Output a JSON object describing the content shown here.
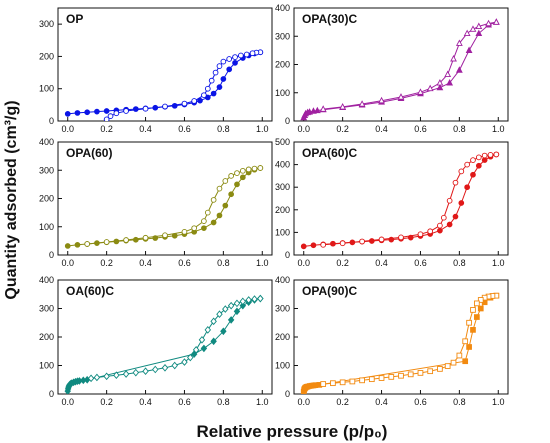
{
  "figure": {
    "ylabel": "Quantity adsorbed (cm³/g)",
    "xlabel": "Relative pressure (p/p₀)"
  },
  "chart_data": [
    {
      "type": "scatter",
      "title": "OP",
      "color": "#0a14e6",
      "marker": "circle",
      "xlim": [
        -0.05,
        1.05
      ],
      "ylim": [
        0,
        350
      ],
      "xticks": [
        "0.0",
        "0.2",
        "0.4",
        "0.6",
        "0.8",
        "1.0"
      ],
      "yticks": [
        "0",
        "100",
        "200",
        "300"
      ],
      "series": [
        {
          "fill": "filled",
          "x": [
            0.0,
            0.05,
            0.1,
            0.15,
            0.2,
            0.25,
            0.3,
            0.35,
            0.4,
            0.45,
            0.5,
            0.55,
            0.6,
            0.65,
            0.68,
            0.72,
            0.75,
            0.78,
            0.8,
            0.83,
            0.86,
            0.9,
            0.93,
            0.96,
            0.99
          ],
          "y": [
            22,
            25,
            27,
            29,
            31,
            33,
            35,
            37,
            39,
            41,
            44,
            47,
            51,
            57,
            63,
            73,
            85,
            105,
            130,
            160,
            180,
            195,
            203,
            209,
            213
          ]
        },
        {
          "fill": "open",
          "x": [
            0.99,
            0.97,
            0.95,
            0.92,
            0.89,
            0.86,
            0.83,
            0.8,
            0.78,
            0.76,
            0.74,
            0.72,
            0.7,
            0.65,
            0.6,
            0.5,
            0.4,
            0.3,
            0.25,
            0.22,
            0.2
          ],
          "y": [
            213,
            212,
            210,
            206,
            203,
            198,
            192,
            184,
            170,
            150,
            125,
            100,
            80,
            62,
            54,
            45,
            38,
            31,
            24,
            15,
            5
          ]
        }
      ]
    },
    {
      "type": "scatter",
      "title": "OPA(30)C",
      "color": "#a020a0",
      "marker": "triangle",
      "xlim": [
        -0.05,
        1.05
      ],
      "ylim": [
        0,
        400
      ],
      "xticks": [
        "0.0",
        "0.2",
        "0.4",
        "0.6",
        "0.8",
        "1.0"
      ],
      "yticks": [
        "0",
        "100",
        "200",
        "300",
        "400"
      ],
      "series": [
        {
          "fill": "filled",
          "x": [
            0.0,
            0.005,
            0.01,
            0.02,
            0.03,
            0.05,
            0.07,
            0.1,
            0.2,
            0.3,
            0.4,
            0.5,
            0.6,
            0.7,
            0.75,
            0.8,
            0.85,
            0.9,
            0.95,
            0.99
          ],
          "y": [
            12,
            20,
            26,
            30,
            32,
            35,
            37,
            40,
            48,
            57,
            67,
            80,
            97,
            118,
            135,
            180,
            250,
            310,
            340,
            350
          ]
        },
        {
          "fill": "open",
          "x": [
            0.99,
            0.95,
            0.9,
            0.87,
            0.84,
            0.8,
            0.77,
            0.74,
            0.7,
            0.65,
            0.6,
            0.5,
            0.4,
            0.3,
            0.2,
            0.1
          ],
          "y": [
            350,
            345,
            335,
            325,
            310,
            275,
            220,
            165,
            135,
            115,
            102,
            85,
            72,
            60,
            50,
            42
          ]
        }
      ]
    },
    {
      "type": "scatter",
      "title": "OPA(60)",
      "color": "#8b8b12",
      "marker": "circle",
      "xlim": [
        -0.05,
        1.05
      ],
      "ylim": [
        0,
        400
      ],
      "xticks": [
        "0.0",
        "0.2",
        "0.4",
        "0.6",
        "0.8",
        "1.0"
      ],
      "yticks": [
        "0",
        "100",
        "200",
        "300",
        "400"
      ],
      "series": [
        {
          "fill": "filled",
          "x": [
            0.0,
            0.05,
            0.1,
            0.15,
            0.2,
            0.25,
            0.3,
            0.35,
            0.4,
            0.45,
            0.5,
            0.55,
            0.6,
            0.65,
            0.7,
            0.75,
            0.78,
            0.81,
            0.84,
            0.87,
            0.9,
            0.93,
            0.96,
            0.99
          ],
          "y": [
            32,
            36,
            39,
            42,
            45,
            48,
            51,
            54,
            57,
            60,
            64,
            68,
            74,
            82,
            95,
            115,
            140,
            175,
            215,
            250,
            275,
            292,
            302,
            308
          ]
        },
        {
          "fill": "open",
          "x": [
            0.99,
            0.96,
            0.93,
            0.9,
            0.87,
            0.84,
            0.81,
            0.78,
            0.75,
            0.72,
            0.7,
            0.65,
            0.6,
            0.5,
            0.4,
            0.3,
            0.2,
            0.1
          ],
          "y": [
            308,
            306,
            303,
            298,
            290,
            280,
            262,
            235,
            195,
            150,
            120,
            95,
            82,
            70,
            61,
            53,
            46,
            39
          ]
        }
      ]
    },
    {
      "type": "scatter",
      "title": "OPA(60)C",
      "color": "#e01818",
      "marker": "circle",
      "xlim": [
        -0.05,
        1.05
      ],
      "ylim": [
        0,
        500
      ],
      "xticks": [
        "0.0",
        "0.2",
        "0.4",
        "0.6",
        "0.8",
        "1.0"
      ],
      "yticks": [
        "0",
        "100",
        "200",
        "300",
        "400",
        "500"
      ],
      "series": [
        {
          "fill": "filled",
          "x": [
            0.0,
            0.05,
            0.1,
            0.15,
            0.2,
            0.25,
            0.3,
            0.35,
            0.4,
            0.45,
            0.5,
            0.55,
            0.6,
            0.65,
            0.7,
            0.75,
            0.78,
            0.81,
            0.84,
            0.87,
            0.9,
            0.93,
            0.96,
            0.99
          ],
          "y": [
            38,
            43,
            47,
            50,
            53,
            56,
            59,
            62,
            65,
            68,
            72,
            77,
            84,
            93,
            108,
            135,
            170,
            230,
            300,
            355,
            395,
            420,
            435,
            445
          ]
        },
        {
          "fill": "open",
          "x": [
            0.99,
            0.96,
            0.93,
            0.9,
            0.87,
            0.84,
            0.81,
            0.78,
            0.75,
            0.72,
            0.7,
            0.65,
            0.6,
            0.5,
            0.4,
            0.3,
            0.2,
            0.1
          ],
          "y": [
            445,
            443,
            440,
            432,
            420,
            400,
            370,
            320,
            240,
            165,
            130,
            105,
            92,
            78,
            69,
            60,
            52,
            45
          ]
        }
      ]
    },
    {
      "type": "scatter",
      "title": "OA(60)C",
      "color": "#108a80",
      "marker": "diamond",
      "xlim": [
        -0.05,
        1.05
      ],
      "ylim": [
        0,
        400
      ],
      "xticks": [
        "0.0",
        "0.2",
        "0.4",
        "0.6",
        "0.8",
        "1.0"
      ],
      "yticks": [
        "0",
        "100",
        "200",
        "300",
        "400"
      ],
      "series": [
        {
          "fill": "filled",
          "x": [
            0.0,
            0.002,
            0.004,
            0.007,
            0.01,
            0.015,
            0.02,
            0.03,
            0.04,
            0.05,
            0.06,
            0.08,
            0.1,
            0.65,
            0.7,
            0.75,
            0.8,
            0.84,
            0.87,
            0.9,
            0.93,
            0.96,
            0.99
          ],
          "y": [
            10,
            18,
            24,
            29,
            33,
            36,
            38,
            41,
            43,
            45,
            46,
            48,
            50,
            140,
            160,
            185,
            220,
            260,
            290,
            310,
            322,
            330,
            335
          ]
        },
        {
          "fill": "open",
          "x": [
            0.99,
            0.96,
            0.93,
            0.9,
            0.87,
            0.84,
            0.81,
            0.78,
            0.75,
            0.72,
            0.69,
            0.66,
            0.63,
            0.6,
            0.55,
            0.5,
            0.45,
            0.4,
            0.35,
            0.3,
            0.25,
            0.2,
            0.15,
            0.12
          ],
          "y": [
            335,
            333,
            330,
            325,
            318,
            310,
            298,
            280,
            255,
            225,
            190,
            155,
            128,
            112,
            100,
            92,
            86,
            80,
            75,
            70,
            66,
            62,
            58,
            55
          ]
        }
      ]
    },
    {
      "type": "scatter",
      "title": "OPA(90)C",
      "color": "#f28a10",
      "marker": "square",
      "xlim": [
        -0.05,
        1.05
      ],
      "ylim": [
        0,
        400
      ],
      "xticks": [
        "0.0",
        "0.2",
        "0.4",
        "0.6",
        "0.8",
        "1.0"
      ],
      "yticks": [
        "0",
        "100",
        "200",
        "300",
        "400"
      ],
      "series": [
        {
          "fill": "filled",
          "x": [
            0.0,
            0.002,
            0.004,
            0.007,
            0.01,
            0.015,
            0.02,
            0.03,
            0.04,
            0.05,
            0.06,
            0.08,
            0.83,
            0.85,
            0.87,
            0.89,
            0.91,
            0.93,
            0.96,
            0.99
          ],
          "y": [
            8,
            14,
            18,
            21,
            23,
            25,
            26,
            28,
            29,
            30,
            31,
            32,
            115,
            165,
            225,
            270,
            300,
            322,
            338,
            345
          ]
        },
        {
          "fill": "open",
          "x": [
            0.99,
            0.97,
            0.95,
            0.93,
            0.91,
            0.89,
            0.87,
            0.85,
            0.83,
            0.8,
            0.77,
            0.74,
            0.7,
            0.65,
            0.6,
            0.55,
            0.5,
            0.45,
            0.4,
            0.35,
            0.3,
            0.25,
            0.2,
            0.15,
            0.1
          ],
          "y": [
            345,
            344,
            342,
            338,
            330,
            318,
            295,
            250,
            185,
            135,
            110,
            98,
            88,
            80,
            74,
            69,
            64,
            60,
            56,
            52,
            48,
            44,
            41,
            38,
            35
          ]
        }
      ]
    }
  ]
}
